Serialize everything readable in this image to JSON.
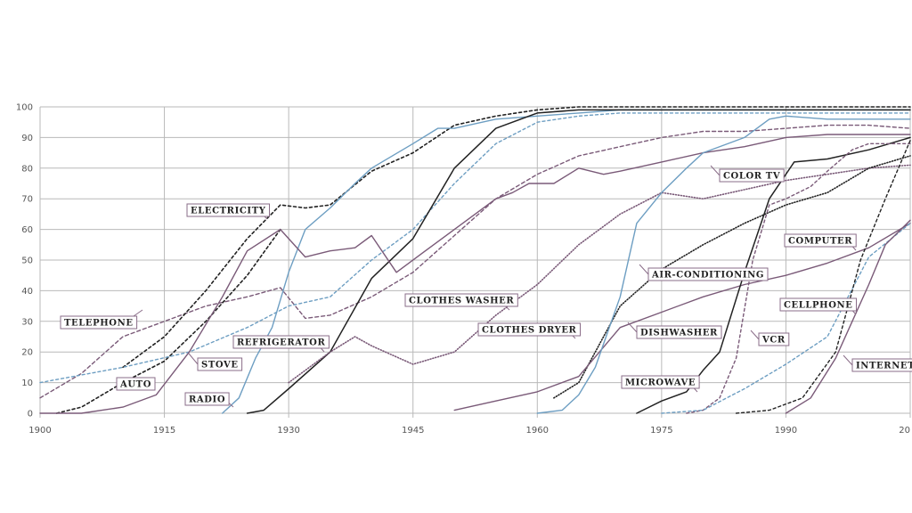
{
  "chart_data": {
    "type": "line",
    "title": "",
    "xlabel": "",
    "ylabel": "",
    "xlim": [
      1900,
      2005
    ],
    "ylim": [
      0,
      100
    ],
    "grid": true,
    "x_ticks": [
      "1900",
      "1915",
      "1930",
      "1945",
      "1960",
      "1975",
      "1990",
      "20"
    ],
    "y_ticks": [
      "0",
      "10",
      "20",
      "30",
      "40",
      "50",
      "60",
      "70",
      "80",
      "90",
      "100"
    ],
    "colors": {
      "dark": "#222222",
      "purple": "#7a5a78",
      "blue": "#6d9ec2",
      "grid": "#b9b9b9",
      "label_border": "#8a6d88"
    },
    "series": [
      {
        "name": "TELEPHONE",
        "color": "purple",
        "dash": "4,3",
        "width": 1.4,
        "points": [
          [
            1900,
            5
          ],
          [
            1905,
            13
          ],
          [
            1910,
            25
          ],
          [
            1915,
            30
          ],
          [
            1920,
            35
          ],
          [
            1925,
            38
          ],
          [
            1929,
            41
          ],
          [
            1932,
            31
          ],
          [
            1935,
            32
          ],
          [
            1940,
            38
          ],
          [
            1945,
            46
          ],
          [
            1950,
            58
          ],
          [
            1955,
            70
          ],
          [
            1960,
            78
          ],
          [
            1965,
            84
          ],
          [
            1970,
            87
          ],
          [
            1975,
            90
          ],
          [
            1980,
            92
          ],
          [
            1985,
            92
          ],
          [
            1990,
            93
          ],
          [
            1995,
            94
          ],
          [
            2000,
            94
          ],
          [
            2005,
            93
          ]
        ]
      },
      {
        "name": "ELECTRICITY",
        "color": "dark",
        "dash": "3,3",
        "width": 1.6,
        "points": [
          [
            1910,
            15
          ],
          [
            1915,
            25
          ],
          [
            1920,
            40
          ],
          [
            1925,
            57
          ],
          [
            1929,
            68
          ],
          [
            1932,
            67
          ],
          [
            1935,
            68
          ],
          [
            1940,
            79
          ],
          [
            1945,
            85
          ],
          [
            1950,
            94
          ],
          [
            1955,
            97
          ],
          [
            1960,
            99
          ],
          [
            1965,
            100
          ],
          [
            1975,
            100
          ],
          [
            2005,
            100
          ]
        ]
      },
      {
        "name": "AUTO",
        "color": "dark",
        "dash": "3,3",
        "width": 1.6,
        "points": [
          [
            1902,
            0
          ],
          [
            1905,
            2
          ],
          [
            1910,
            10
          ],
          [
            1915,
            17
          ],
          [
            1920,
            30
          ],
          [
            1925,
            45
          ],
          [
            1929,
            60
          ]
        ]
      },
      {
        "name": "RADIO",
        "color": "blue",
        "dash": "",
        "width": 1.4,
        "points": [
          [
            1922,
            0
          ],
          [
            1924,
            5
          ],
          [
            1926,
            18
          ],
          [
            1928,
            28
          ],
          [
            1930,
            46
          ],
          [
            1932,
            60
          ],
          [
            1935,
            67
          ],
          [
            1938,
            75
          ],
          [
            1940,
            80
          ],
          [
            1945,
            88
          ],
          [
            1948,
            93
          ],
          [
            1950,
            93
          ],
          [
            1955,
            96
          ],
          [
            1960,
            97
          ],
          [
            1965,
            98
          ],
          [
            1970,
            99
          ],
          [
            1975,
            99
          ],
          [
            2005,
            99
          ]
        ]
      },
      {
        "name": "STOVE",
        "color": "blue",
        "dash": "3,3",
        "width": 1.4,
        "points": [
          [
            1900,
            10
          ],
          [
            1910,
            15
          ],
          [
            1918,
            20
          ],
          [
            1925,
            28
          ],
          [
            1930,
            35
          ],
          [
            1935,
            38
          ],
          [
            1940,
            50
          ],
          [
            1945,
            60
          ],
          [
            1950,
            75
          ],
          [
            1955,
            88
          ],
          [
            1960,
            95
          ],
          [
            1965,
            97
          ],
          [
            1970,
            98
          ],
          [
            1980,
            98
          ],
          [
            1990,
            98
          ],
          [
            2005,
            98
          ]
        ]
      },
      {
        "name": "REFRIGERATOR",
        "color": "dark",
        "dash": "",
        "width": 1.5,
        "points": [
          [
            1925,
            0
          ],
          [
            1927,
            1
          ],
          [
            1930,
            8
          ],
          [
            1935,
            20
          ],
          [
            1940,
            44
          ],
          [
            1945,
            57
          ],
          [
            1950,
            80
          ],
          [
            1955,
            93
          ],
          [
            1960,
            98
          ],
          [
            1965,
            99
          ],
          [
            2005,
            99
          ]
        ]
      },
      {
        "name": "CLOTHES WASHER",
        "color": "purple",
        "dash": "",
        "width": 1.4,
        "points": [
          [
            1900,
            0
          ],
          [
            1905,
            0
          ],
          [
            1910,
            2
          ],
          [
            1914,
            6
          ],
          [
            1918,
            20
          ],
          [
            1922,
            38
          ],
          [
            1925,
            53
          ],
          [
            1929,
            60
          ],
          [
            1932,
            51
          ],
          [
            1935,
            53
          ],
          [
            1938,
            54
          ],
          [
            1940,
            58
          ],
          [
            1943,
            46
          ],
          [
            1946,
            52
          ],
          [
            1950,
            60
          ],
          [
            1955,
            70
          ],
          [
            1957,
            72
          ],
          [
            1959,
            75
          ],
          [
            1962,
            75
          ],
          [
            1965,
            80
          ],
          [
            1968,
            78
          ],
          [
            1970,
            79
          ],
          [
            1975,
            82
          ],
          [
            1980,
            85
          ],
          [
            1985,
            87
          ],
          [
            1990,
            90
          ],
          [
            1995,
            91
          ],
          [
            2000,
            91
          ],
          [
            2005,
            91
          ]
        ]
      },
      {
        "name": "CLOTHES DRYER",
        "color": "purple",
        "dash": "1,2",
        "width": 1.6,
        "points": [
          [
            1930,
            10
          ],
          [
            1935,
            20
          ],
          [
            1938,
            25
          ],
          [
            1940,
            22
          ],
          [
            1945,
            16
          ],
          [
            1950,
            20
          ],
          [
            1955,
            32
          ],
          [
            1960,
            42
          ],
          [
            1965,
            55
          ],
          [
            1970,
            65
          ],
          [
            1975,
            72
          ],
          [
            1980,
            70
          ],
          [
            1985,
            73
          ],
          [
            1990,
            76
          ],
          [
            1995,
            78
          ],
          [
            2000,
            80
          ],
          [
            2005,
            81
          ]
        ]
      },
      {
        "name": "AIR-CONDITIONING",
        "color": "dark",
        "dash": "1,2",
        "width": 1.6,
        "points": [
          [
            1962,
            5
          ],
          [
            1965,
            10
          ],
          [
            1970,
            35
          ],
          [
            1975,
            47
          ],
          [
            1980,
            55
          ],
          [
            1985,
            62
          ],
          [
            1990,
            68
          ],
          [
            1995,
            72
          ],
          [
            2000,
            80
          ],
          [
            2005,
            84
          ]
        ]
      },
      {
        "name": "DISHWASHER",
        "color": "purple",
        "dash": "",
        "width": 1.4,
        "points": [
          [
            1950,
            1
          ],
          [
            1955,
            4
          ],
          [
            1960,
            7
          ],
          [
            1965,
            12
          ],
          [
            1970,
            28
          ],
          [
            1975,
            33
          ],
          [
            1980,
            38
          ],
          [
            1985,
            42
          ],
          [
            1990,
            45
          ],
          [
            1995,
            49
          ],
          [
            2000,
            54
          ],
          [
            2005,
            62
          ]
        ]
      },
      {
        "name": "COLOR TV",
        "color": "blue",
        "dash": "",
        "width": 1.4,
        "points": [
          [
            1960,
            0
          ],
          [
            1963,
            1
          ],
          [
            1965,
            6
          ],
          [
            1967,
            15
          ],
          [
            1970,
            38
          ],
          [
            1972,
            62
          ],
          [
            1975,
            72
          ],
          [
            1978,
            80
          ],
          [
            1980,
            85
          ],
          [
            1985,
            90
          ],
          [
            1988,
            96
          ],
          [
            1990,
            97
          ],
          [
            1995,
            96
          ],
          [
            2000,
            96
          ],
          [
            2005,
            96
          ]
        ]
      },
      {
        "name": "MICROWAVE",
        "color": "dark",
        "dash": "",
        "width": 1.5,
        "points": [
          [
            1972,
            0
          ],
          [
            1975,
            4
          ],
          [
            1978,
            7
          ],
          [
            1980,
            14
          ],
          [
            1982,
            20
          ],
          [
            1985,
            46
          ],
          [
            1988,
            70
          ],
          [
            1991,
            82
          ],
          [
            1995,
            83
          ],
          [
            2000,
            86
          ],
          [
            2005,
            90
          ]
        ]
      },
      {
        "name": "VCR",
        "color": "purple",
        "dash": "3,3",
        "width": 1.4,
        "points": [
          [
            1978,
            0
          ],
          [
            1980,
            1
          ],
          [
            1982,
            5
          ],
          [
            1984,
            18
          ],
          [
            1986,
            50
          ],
          [
            1988,
            68
          ],
          [
            1990,
            70
          ],
          [
            1993,
            74
          ],
          [
            1995,
            79
          ],
          [
            1998,
            86
          ],
          [
            2000,
            88
          ],
          [
            2005,
            88
          ]
        ]
      },
      {
        "name": "COMPUTER",
        "color": "blue",
        "dash": "3,3",
        "width": 1.4,
        "points": [
          [
            1975,
            0
          ],
          [
            1980,
            1
          ],
          [
            1985,
            8
          ],
          [
            1990,
            16
          ],
          [
            1995,
            25
          ],
          [
            2000,
            51
          ],
          [
            2005,
            62
          ]
        ]
      },
      {
        "name": "CELLPHONE",
        "color": "dark",
        "dash": "3,3",
        "width": 1.4,
        "points": [
          [
            1984,
            0
          ],
          [
            1988,
            1
          ],
          [
            1992,
            5
          ],
          [
            1996,
            20
          ],
          [
            1999,
            50
          ],
          [
            2002,
            70
          ],
          [
            2005,
            89
          ]
        ]
      },
      {
        "name": "INTERNET",
        "color": "purple",
        "dash": "",
        "width": 1.4,
        "points": [
          [
            1990,
            0
          ],
          [
            1993,
            5
          ],
          [
            1996,
            18
          ],
          [
            1998,
            30
          ],
          [
            2000,
            42
          ],
          [
            2002,
            55
          ],
          [
            2005,
            63
          ]
        ]
      }
    ],
    "annotations": [
      {
        "text": "TELEPHONE"
      },
      {
        "text": "ELECTRICITY"
      },
      {
        "text": "AUTO"
      },
      {
        "text": "RADIO"
      },
      {
        "text": "STOVE"
      },
      {
        "text": "REFRIGERATOR"
      },
      {
        "text": "CLOTHES WASHER"
      },
      {
        "text": "CLOTHES DRYER"
      },
      {
        "text": "AIR-CONDITIONING"
      },
      {
        "text": "DISHWASHER"
      },
      {
        "text": "COLOR TV"
      },
      {
        "text": "MICROWAVE"
      },
      {
        "text": "VCR"
      },
      {
        "text": "COMPUTER"
      },
      {
        "text": "CELLPHONE"
      },
      {
        "text": "INTERNET"
      }
    ]
  }
}
